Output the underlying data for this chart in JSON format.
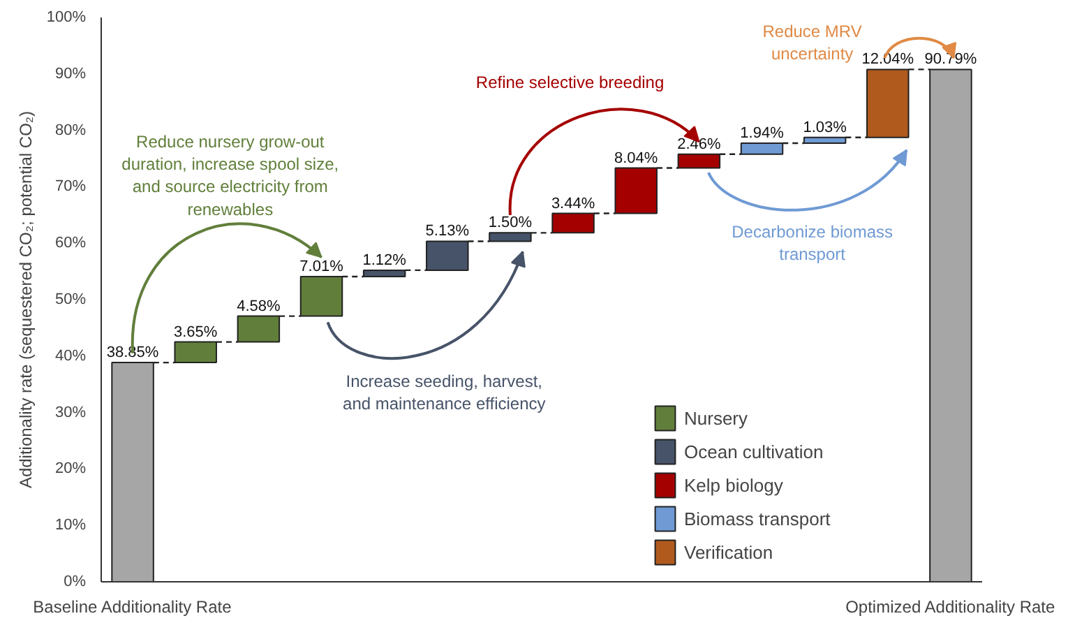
{
  "chart_data": {
    "type": "bar",
    "ylabel": "Additionality rate (sequestered CO₂; potential CO₂)",
    "categories": [
      "Baseline Additionality Rate",
      null,
      null,
      null,
      null,
      null,
      null,
      null,
      null,
      null,
      null,
      null,
      null,
      "Optimized Additionality Rate"
    ],
    "series": [
      {
        "color": "#a6a6a6",
        "values": [
          38.85,
          null,
          null,
          null,
          null,
          null,
          null,
          null,
          null,
          null,
          null,
          null,
          null,
          90.79
        ],
        "base": [
          0,
          null,
          null,
          null,
          null,
          null,
          null,
          null,
          null,
          null,
          null,
          null,
          null,
          0
        ]
      },
      {
        "name": "Nursery",
        "color": "#617f3b",
        "values": [
          null,
          3.65,
          4.58,
          7.01,
          null,
          null,
          null,
          null,
          null,
          null,
          null,
          null,
          null,
          null
        ],
        "base": [
          null,
          38.85,
          42.5,
          47.08,
          null,
          null,
          null,
          null,
          null,
          null,
          null,
          null,
          null,
          null
        ]
      },
      {
        "name": "Ocean cultivation",
        "color": "#475368",
        "values": [
          null,
          null,
          null,
          null,
          1.12,
          5.13,
          1.5,
          null,
          null,
          null,
          null,
          null,
          null,
          null
        ],
        "base": [
          null,
          null,
          null,
          null,
          54.09,
          55.21,
          60.34,
          null,
          null,
          null,
          null,
          null,
          null,
          null
        ]
      },
      {
        "name": "Kelp biology",
        "color": "#a50000",
        "values": [
          null,
          null,
          null,
          null,
          null,
          null,
          null,
          3.44,
          8.04,
          2.46,
          null,
          null,
          null,
          null
        ],
        "base": [
          null,
          null,
          null,
          null,
          null,
          null,
          null,
          61.84,
          65.28,
          73.32,
          null,
          null,
          null,
          null
        ]
      },
      {
        "name": "Biomass transport",
        "color": "#6f9ad4",
        "values": [
          null,
          null,
          null,
          null,
          null,
          null,
          null,
          null,
          null,
          null,
          1.94,
          1.03,
          null,
          null
        ],
        "base": [
          null,
          null,
          null,
          null,
          null,
          null,
          null,
          null,
          null,
          null,
          75.78,
          77.72,
          null,
          null
        ]
      },
      {
        "name": "Verification",
        "color": "#b05a1e",
        "values": [
          null,
          null,
          null,
          null,
          null,
          null,
          null,
          null,
          null,
          null,
          null,
          null,
          12.04,
          null
        ],
        "base": [
          null,
          null,
          null,
          null,
          null,
          null,
          null,
          null,
          null,
          null,
          null,
          null,
          78.75,
          null
        ]
      }
    ],
    "value_labels": [
      "38.85%",
      "3.65%",
      "4.58%",
      "7.01%",
      "1.12%",
      "5.13%",
      "1.50%",
      "3.44%",
      "8.04%",
      "2.46%",
      "1.94%",
      "1.03%",
      "12.04%",
      "90.79%"
    ],
    "ylim": [
      0,
      100
    ],
    "yticks": [
      {
        "value": 0,
        "label": "0%"
      },
      {
        "value": 10,
        "label": "10%"
      },
      {
        "value": 20,
        "label": "20%"
      },
      {
        "value": 30,
        "label": "30%"
      },
      {
        "value": 40,
        "label": "40%"
      },
      {
        "value": 50,
        "label": "50%"
      },
      {
        "value": 60,
        "label": "60%"
      },
      {
        "value": 70,
        "label": "70%"
      },
      {
        "value": 80,
        "label": "80%"
      },
      {
        "value": 90,
        "label": "90%"
      },
      {
        "value": 100,
        "label": "100%"
      }
    ],
    "annotations": [
      "Reduce nursery grow-out\nduration, increase spool size,\nand source electricity from\nrenewables",
      "Increase seeding, harvest,\nand maintenance efficiency",
      "Refine selective breeding",
      "Decarbonize biomass\ntransport",
      "Reduce MRV\nuncertainty"
    ],
    "legend": "bottom right",
    "grid": false
  }
}
